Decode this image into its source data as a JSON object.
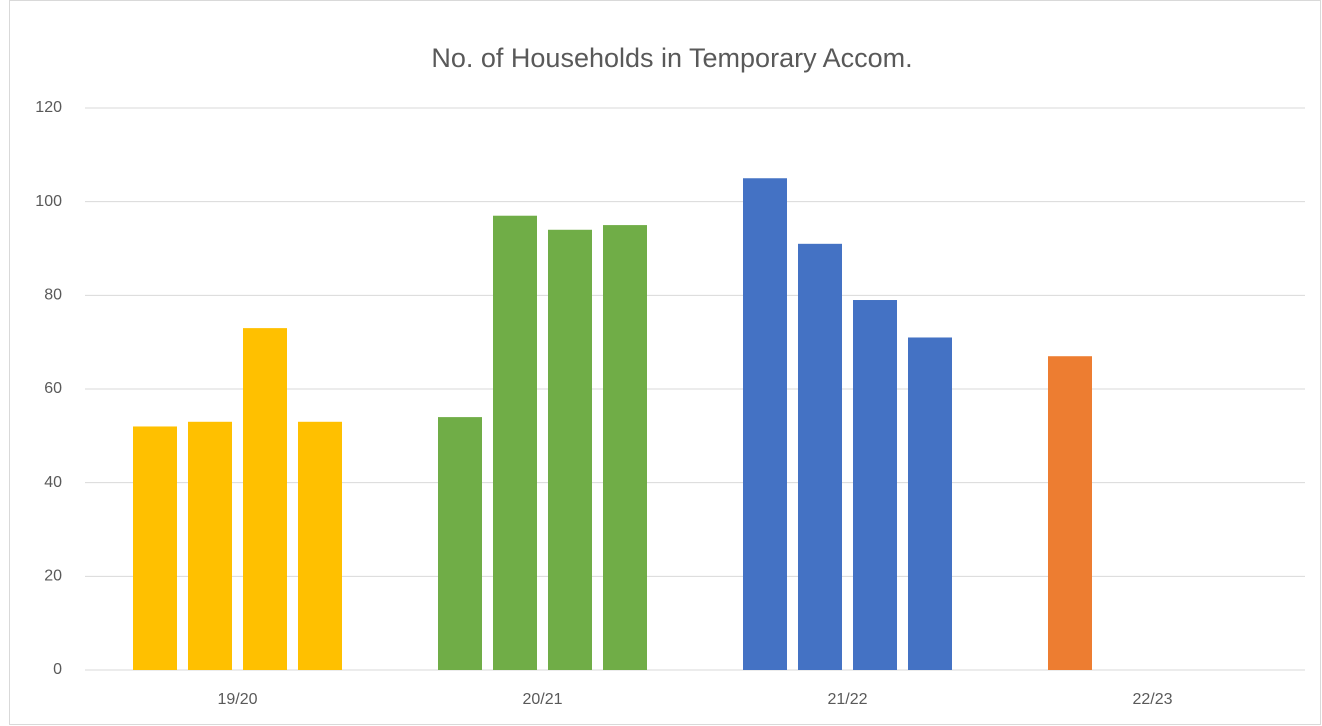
{
  "chart_data": {
    "type": "bar",
    "title": "No. of Households in Temporary Accom.",
    "categories": [
      "19/20",
      "20/21",
      "21/22",
      "22/23"
    ],
    "colors": [
      "#ffc000",
      "#70ad47",
      "#4472c4",
      "#ed7d31"
    ],
    "series": [
      {
        "values": [
          52,
          54,
          105,
          67
        ]
      },
      {
        "values": [
          53,
          97,
          91,
          null
        ]
      },
      {
        "values": [
          73,
          94,
          79,
          null
        ]
      },
      {
        "values": [
          53,
          95,
          71,
          null
        ]
      }
    ],
    "ylim": [
      0,
      120
    ],
    "yticks": [
      0,
      20,
      40,
      60,
      80,
      100,
      120
    ],
    "grid": true
  }
}
